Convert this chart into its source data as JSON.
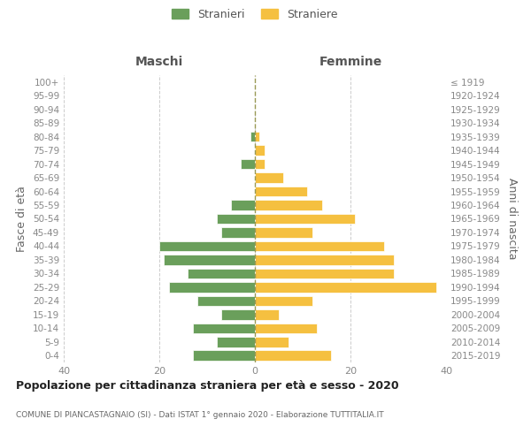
{
  "age_groups": [
    "0-4",
    "5-9",
    "10-14",
    "15-19",
    "20-24",
    "25-29",
    "30-34",
    "35-39",
    "40-44",
    "45-49",
    "50-54",
    "55-59",
    "60-64",
    "65-69",
    "70-74",
    "75-79",
    "80-84",
    "85-89",
    "90-94",
    "95-99",
    "100+"
  ],
  "birth_years": [
    "2015-2019",
    "2010-2014",
    "2005-2009",
    "2000-2004",
    "1995-1999",
    "1990-1994",
    "1985-1989",
    "1980-1984",
    "1975-1979",
    "1970-1974",
    "1965-1969",
    "1960-1964",
    "1955-1959",
    "1950-1954",
    "1945-1949",
    "1940-1944",
    "1935-1939",
    "1930-1934",
    "1925-1929",
    "1920-1924",
    "≤ 1919"
  ],
  "maschi": [
    13,
    8,
    13,
    7,
    12,
    18,
    14,
    19,
    20,
    7,
    8,
    5,
    0,
    0,
    3,
    0,
    1,
    0,
    0,
    0,
    0
  ],
  "femmine": [
    16,
    7,
    13,
    5,
    12,
    38,
    29,
    29,
    27,
    12,
    21,
    14,
    11,
    6,
    2,
    2,
    1,
    0,
    0,
    0,
    0
  ],
  "maschi_color": "#6a9f5b",
  "femmine_color": "#f5c040",
  "title": "Popolazione per cittadinanza straniera per età e sesso - 2020",
  "subtitle": "COMUNE DI PIANCASTAGNAIO (SI) - Dati ISTAT 1° gennaio 2020 - Elaborazione TUTTITALIA.IT",
  "xlabel_left": "Maschi",
  "xlabel_right": "Femmine",
  "ylabel_left": "Fasce di età",
  "ylabel_right": "Anni di nascita",
  "xlim": 40,
  "legend_stranieri": "Stranieri",
  "legend_straniere": "Straniere",
  "background_color": "#ffffff",
  "grid_color": "#cccccc"
}
